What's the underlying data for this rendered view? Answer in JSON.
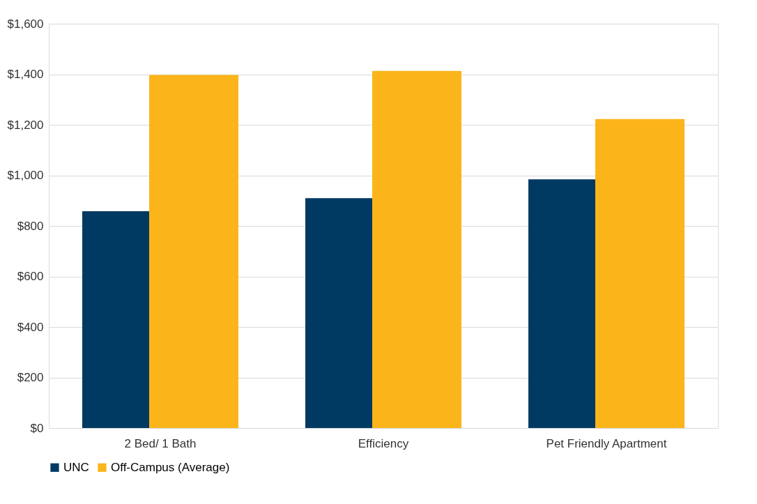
{
  "chart_data": {
    "type": "bar",
    "categories": [
      "2 Bed/ 1 Bath",
      "Efficiency",
      "Pet Friendly Apartment"
    ],
    "series": [
      {
        "name": "UNC",
        "color": "#003a63",
        "values": [
          858,
          910,
          984
        ]
      },
      {
        "name": "Off-Campus (Average)",
        "color": "#fbb51a",
        "values": [
          1397,
          1413,
          1223
        ]
      }
    ],
    "ylim": [
      0,
      1600
    ],
    "yticks": [
      {
        "value": 0,
        "label": "$0"
      },
      {
        "value": 200,
        "label": "$200"
      },
      {
        "value": 400,
        "label": "$400"
      },
      {
        "value": 600,
        "label": "$600"
      },
      {
        "value": 800,
        "label": "$800"
      },
      {
        "value": 1000,
        "label": "$1,000"
      },
      {
        "value": 1200,
        "label": "$1,200"
      },
      {
        "value": 1400,
        "label": "$1,400"
      },
      {
        "value": 1600,
        "label": "$1,600"
      }
    ],
    "grid": "y",
    "legend": "bottom"
  }
}
